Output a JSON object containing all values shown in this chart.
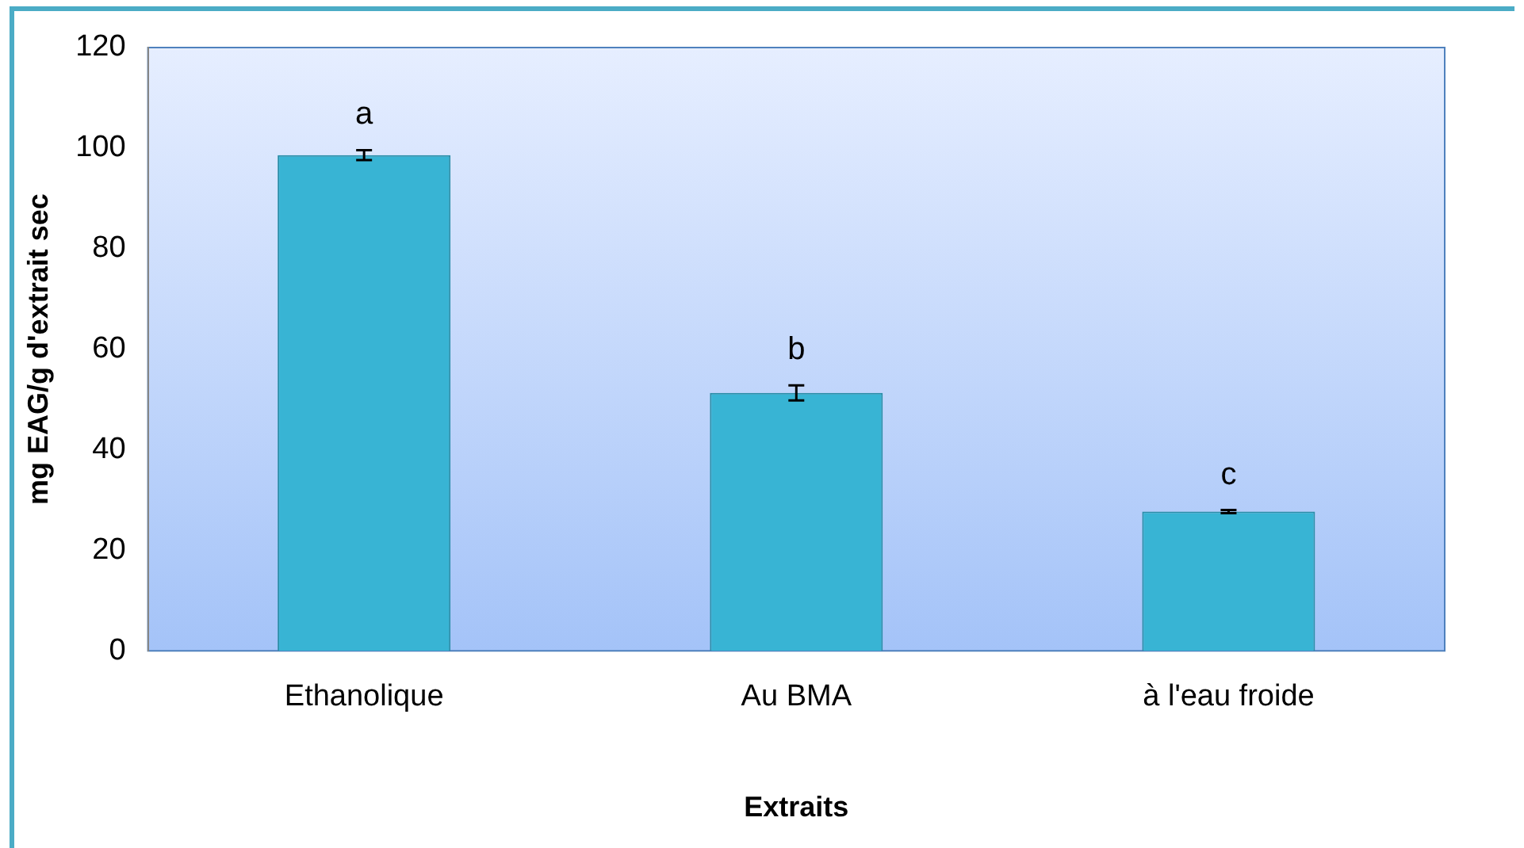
{
  "chart_data": {
    "type": "bar",
    "xlabel": "Extraits",
    "ylabel": "mg EAG/g d'extrait sec",
    "categories": [
      "Ethanolique",
      "Au BMA",
      "à l'eau froide"
    ],
    "values": [
      98.6,
      51.3,
      27.7
    ],
    "errors": [
      1,
      1.5,
      0.3
    ],
    "color": "#38b4d4",
    "ylim": [
      0,
      120
    ],
    "yticks": [
      0,
      20,
      40,
      60,
      80,
      100,
      120
    ],
    "grid": false,
    "legend": false,
    "annotations": [
      "a",
      "b",
      "c"
    ]
  }
}
